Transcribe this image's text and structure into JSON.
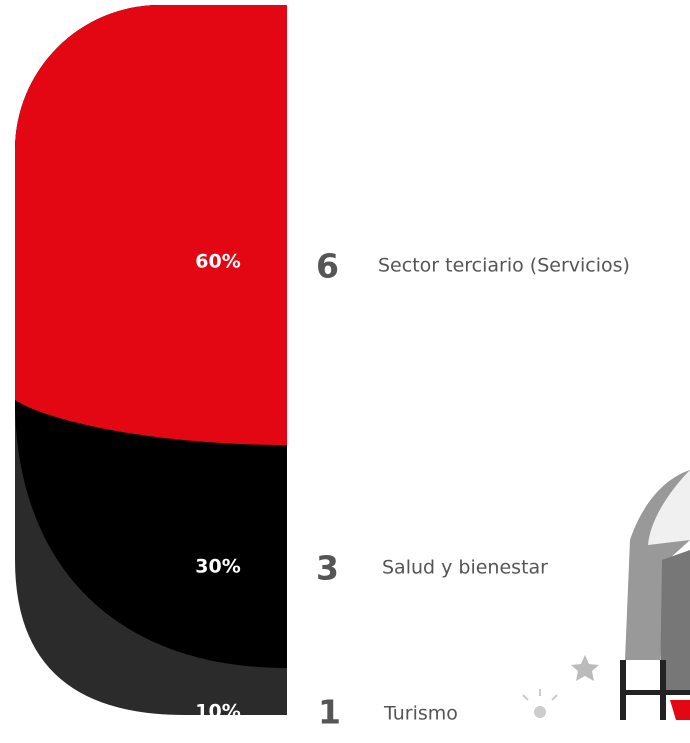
{
  "segments": [
    {
      "percent_label": "60%",
      "count": "6",
      "label": "Sector terciario (Servicios)",
      "color": "#e30613"
    },
    {
      "percent_label": "30%",
      "count": "3",
      "label": "Salud y bienestar",
      "color": "#000000"
    },
    {
      "percent_label": "10%",
      "count": "1",
      "label": "Turismo",
      "color": "#2b2b2b"
    }
  ]
}
